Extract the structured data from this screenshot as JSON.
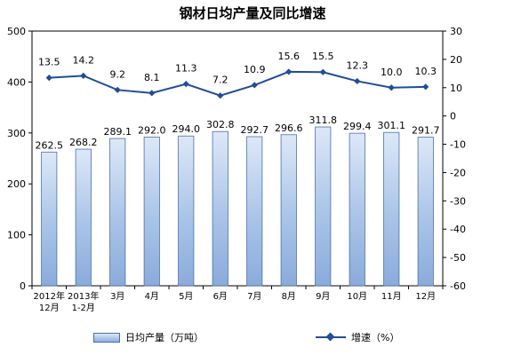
{
  "title": "钢材日均产量及同比增速",
  "legend": {
    "bar_label": "日均产量（万吨）",
    "line_label": "增速（%）"
  },
  "colors": {
    "bar_fill": "#a9c4e8",
    "bar_stroke": "#4a6fa8",
    "line": "#1f4e96"
  },
  "chart_data": {
    "type": "bar",
    "title": "钢材日均产量及同比增速",
    "categories": [
      [
        "2012年",
        "12月"
      ],
      [
        "2013年",
        "1-2月"
      ],
      [
        "3月"
      ],
      [
        "4月"
      ],
      [
        "5月"
      ],
      [
        "6月"
      ],
      [
        "7月"
      ],
      [
        "8月"
      ],
      [
        "9月"
      ],
      [
        "10月"
      ],
      [
        "11月"
      ],
      [
        "12月"
      ]
    ],
    "series": [
      {
        "name": "日均产量（万吨）",
        "type": "bar",
        "axis": "left",
        "values": [
          262.5,
          268.2,
          289.1,
          292.0,
          294.0,
          302.8,
          292.7,
          296.6,
          311.8,
          299.4,
          301.1,
          291.7
        ],
        "labels": [
          "262.5",
          "268.2",
          "289.1",
          "292.0",
          "294.0",
          "302.8",
          "292.7",
          "296.6",
          "311.8",
          "299.4",
          "301.1",
          "291.7"
        ]
      },
      {
        "name": "增速（%）",
        "type": "line",
        "axis": "right",
        "values": [
          13.5,
          14.2,
          9.2,
          8.1,
          11.3,
          7.2,
          10.9,
          15.6,
          15.5,
          12.3,
          10.0,
          10.3
        ],
        "labels": [
          "13.5",
          "14.2",
          "9.2",
          "8.1",
          "11.3",
          "7.2",
          "10.9",
          "15.6",
          "15.5",
          "12.3",
          "10.0",
          "10.3"
        ]
      }
    ],
    "y_left": {
      "min": 0,
      "max": 500,
      "ticks": [
        0,
        100,
        200,
        300,
        400,
        500
      ]
    },
    "y_right": {
      "min": -60,
      "max": 30,
      "ticks": [
        -60,
        -50,
        -40,
        -30,
        -20,
        -10,
        0,
        10,
        20,
        30
      ]
    },
    "grid": false,
    "legend_position": "bottom"
  }
}
